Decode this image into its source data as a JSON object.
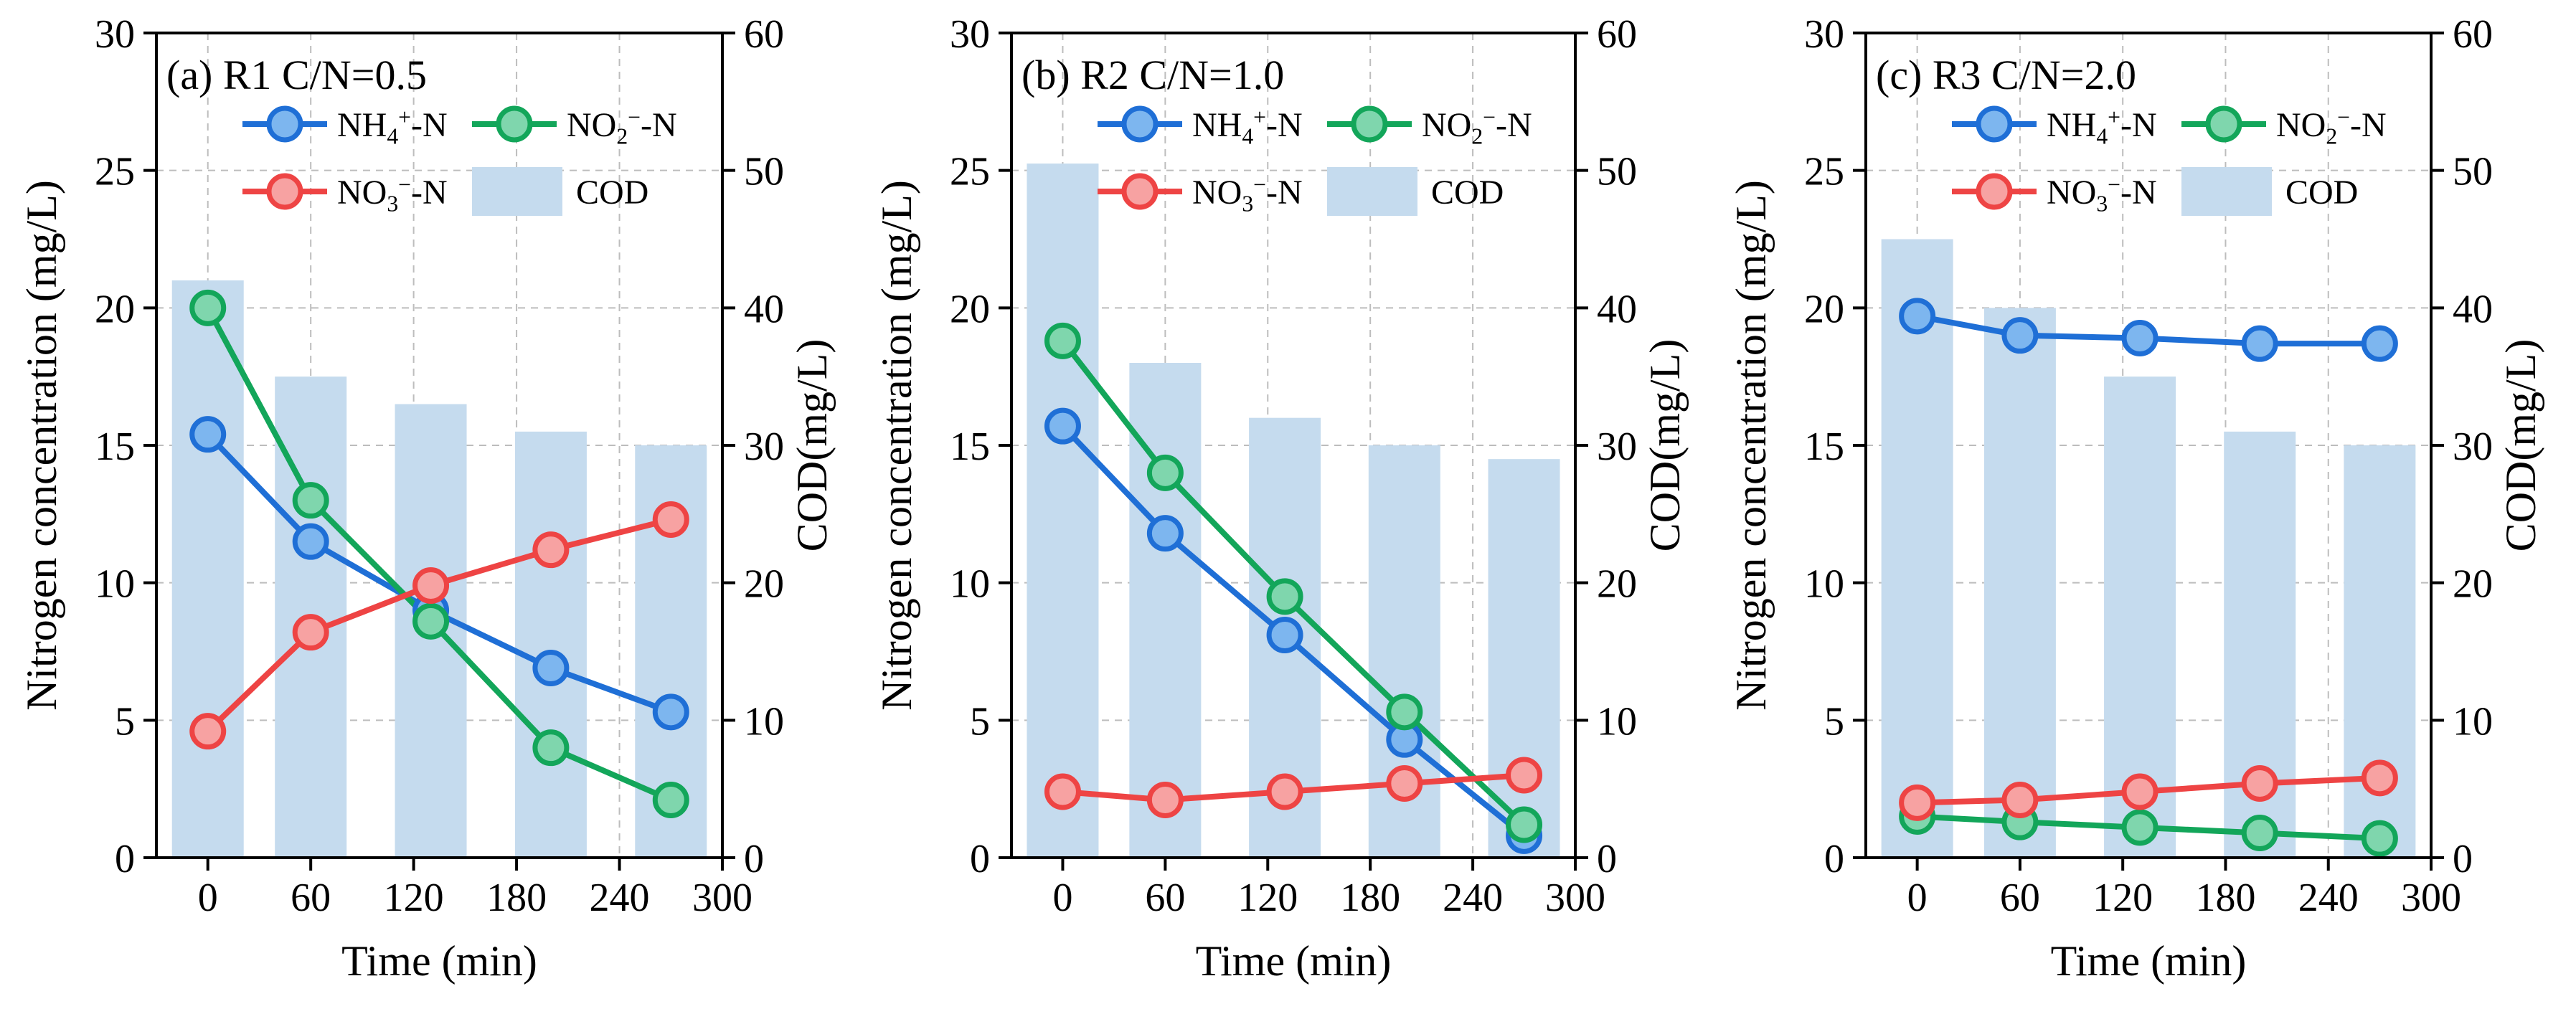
{
  "panel_labels": [
    "(a) R1 C/N=0.5",
    "(b) R2 C/N=1.0",
    "(c) R3 C/N=2.0"
  ],
  "axes": {
    "xlabel": "Time (min)",
    "ylabel_left": "Nitrogen concentration (mg/L)",
    "ylabel_right": "COD(mg/L)",
    "x_ticks": [
      0,
      60,
      120,
      180,
      240,
      300
    ],
    "y_left_ticks": [
      0,
      5,
      10,
      15,
      20,
      25,
      30
    ],
    "y_right_ticks": [
      0,
      10,
      20,
      30,
      40,
      50,
      60
    ]
  },
  "legend": {
    "nh4": {
      "base": "NH",
      "sub": "4",
      "sup": "+",
      "tail": "-N"
    },
    "no2": {
      "base": "NO",
      "sub": "2",
      "sup": "−",
      "tail": "-N"
    },
    "no3": {
      "base": "NO",
      "sub": "3",
      "sup": "−",
      "tail": "-N"
    },
    "cod": "COD"
  },
  "colors": {
    "nh4_line": "#1f6fd6",
    "nh4_fill": "#7db6ef",
    "no2_line": "#13a65a",
    "no2_fill": "#7fd6ad",
    "no3_line": "#ee4444",
    "no3_fill": "#f7a2a2",
    "cod_bar": "#c5dbee",
    "grid": "#bdbdbd"
  },
  "chart_data": [
    {
      "type": "bar+line",
      "title": "(a) R1 C/N=0.5",
      "xlabel": "Time (min)",
      "ylabel": "Nitrogen concentration (mg/L)",
      "y2label": "COD(mg/L)",
      "xlim": [
        -30,
        300
      ],
      "ylim": [
        0,
        30
      ],
      "y2lim": [
        0,
        60
      ],
      "grid": true,
      "legend_position": "top",
      "x": [
        0,
        60,
        130,
        200,
        270
      ],
      "series": [
        {
          "name": "NH4+-N",
          "axis": "left",
          "values": [
            15.4,
            11.5,
            9.0,
            6.9,
            5.3
          ]
        },
        {
          "name": "NO2−-N",
          "axis": "left",
          "values": [
            20.0,
            13.0,
            8.6,
            4.0,
            2.1
          ]
        },
        {
          "name": "NO3−-N",
          "axis": "left",
          "values": [
            4.6,
            8.2,
            9.9,
            11.2,
            12.3
          ]
        },
        {
          "name": "COD",
          "axis": "right",
          "type": "bar",
          "values": [
            42,
            35,
            33,
            31,
            30
          ]
        }
      ]
    },
    {
      "type": "bar+line",
      "title": "(b) R2 C/N=1.0",
      "xlabel": "Time (min)",
      "ylabel": "Nitrogen concentration (mg/L)",
      "y2label": "COD(mg/L)",
      "xlim": [
        -30,
        300
      ],
      "ylim": [
        0,
        30
      ],
      "y2lim": [
        0,
        60
      ],
      "grid": true,
      "legend_position": "top",
      "x": [
        0,
        60,
        130,
        200,
        270
      ],
      "series": [
        {
          "name": "NH4+-N",
          "axis": "left",
          "values": [
            15.7,
            11.8,
            8.1,
            4.3,
            0.8
          ]
        },
        {
          "name": "NO2−-N",
          "axis": "left",
          "values": [
            18.8,
            14.0,
            9.5,
            5.3,
            1.2
          ]
        },
        {
          "name": "NO3−-N",
          "axis": "left",
          "values": [
            2.4,
            2.1,
            2.4,
            2.7,
            3.0
          ]
        },
        {
          "name": "COD",
          "axis": "right",
          "type": "bar",
          "values": [
            50.5,
            36,
            32,
            30,
            29
          ]
        }
      ]
    },
    {
      "type": "bar+line",
      "title": "(c) R3 C/N=2.0",
      "xlabel": "Time (min)",
      "ylabel": "Nitrogen concentration (mg/L)",
      "y2label": "COD(mg/L)",
      "xlim": [
        -30,
        300
      ],
      "ylim": [
        0,
        30
      ],
      "y2lim": [
        0,
        60
      ],
      "grid": true,
      "legend_position": "top",
      "x": [
        0,
        60,
        130,
        200,
        270
      ],
      "series": [
        {
          "name": "NH4+-N",
          "axis": "left",
          "values": [
            19.7,
            19.0,
            18.9,
            18.7,
            18.7
          ]
        },
        {
          "name": "NO2−-N",
          "axis": "left",
          "values": [
            1.5,
            1.3,
            1.1,
            0.9,
            0.7
          ]
        },
        {
          "name": "NO3−-N",
          "axis": "left",
          "values": [
            2.0,
            2.1,
            2.4,
            2.7,
            2.9
          ]
        },
        {
          "name": "COD",
          "axis": "right",
          "type": "bar",
          "values": [
            45,
            40,
            35,
            31,
            30
          ]
        }
      ]
    }
  ]
}
